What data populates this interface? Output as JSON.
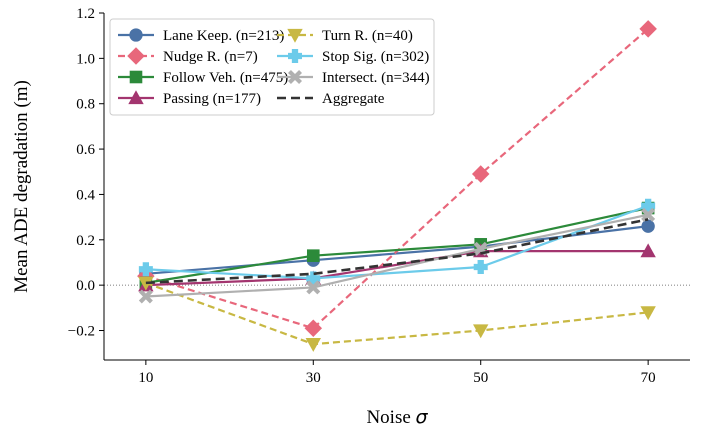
{
  "chart_data": {
    "type": "line",
    "title": "",
    "xlabel": "Noise",
    "xlabel_symbol": "σ",
    "ylabel": "Mean ADE degradation (m)",
    "x": [
      10,
      30,
      50,
      70
    ],
    "x_ticks": [
      "10",
      "30",
      "50",
      "70"
    ],
    "ylim": [
      -0.33,
      1.2
    ],
    "y_ticks": [
      -0.2,
      0.0,
      0.2,
      0.4,
      0.6,
      0.8,
      1.0,
      1.2
    ],
    "y_tick_labels": [
      "−0.2",
      "0.0",
      "0.2",
      "0.4",
      "0.6",
      "0.8",
      "1.0",
      "1.2"
    ],
    "zero_line": true,
    "grid": false,
    "legend_position": "top-left",
    "series": [
      {
        "name": "Lane Keep. (n=213)",
        "values": [
          0.05,
          0.11,
          0.17,
          0.26
        ],
        "color": "#4a72a6",
        "marker": "circle",
        "dashed": false
      },
      {
        "name": "Nudge R. (n=7)",
        "values": [
          0.04,
          -0.19,
          0.49,
          1.13
        ],
        "color": "#e8677b",
        "marker": "diamond",
        "dashed": true
      },
      {
        "name": "Follow Veh. (n=475)",
        "values": [
          0.01,
          0.13,
          0.18,
          0.34
        ],
        "color": "#2c8a3a",
        "marker": "square",
        "dashed": false
      },
      {
        "name": "Passing (n=177)",
        "values": [
          0.0,
          0.03,
          0.15,
          0.15
        ],
        "color": "#a3356f",
        "marker": "triangle-up",
        "dashed": false
      },
      {
        "name": "Turn R. (n=40)",
        "values": [
          0.01,
          -0.26,
          -0.2,
          -0.12
        ],
        "color": "#c8b843",
        "marker": "triangle-down",
        "dashed": true
      },
      {
        "name": "Stop Sig. (n=302)",
        "values": [
          0.07,
          0.03,
          0.08,
          0.35
        ],
        "color": "#6ccbea",
        "marker": "plus",
        "dashed": false
      },
      {
        "name": "Intersect. (n=344)",
        "values": [
          -0.05,
          -0.01,
          0.16,
          0.31
        ],
        "color": "#b0b0b0",
        "marker": "x",
        "dashed": false
      },
      {
        "name": "Aggregate",
        "values": [
          0.01,
          0.05,
          0.14,
          0.29
        ],
        "color": "#333333",
        "marker": "none",
        "dashed": true
      }
    ]
  }
}
